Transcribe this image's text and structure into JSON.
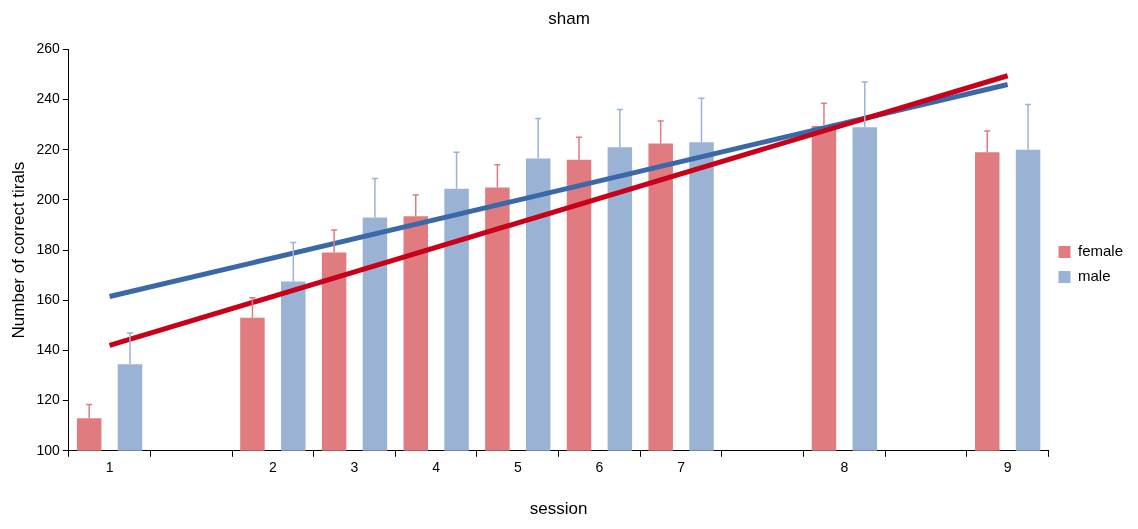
{
  "chart_data": {
    "type": "bar",
    "title": "sham",
    "xlabel": "session",
    "ylabel": "Number of correct tirals",
    "categories": [
      "1",
      null,
      "2",
      "3",
      "4",
      "5",
      "6",
      "7",
      null,
      "8",
      null,
      "9"
    ],
    "series": [
      {
        "name": "female",
        "color": "#e07b80",
        "values": [
          113,
          null,
          153,
          179,
          193.5,
          205,
          216,
          222.5,
          null,
          229.5,
          null,
          219
        ],
        "errors": [
          [
            113,
            118.5
          ],
          null,
          [
            153,
            161
          ],
          [
            179,
            188
          ],
          [
            193.5,
            202
          ],
          [
            205,
            214
          ],
          [
            216,
            225
          ],
          [
            222.5,
            231.5
          ],
          null,
          [
            229.5,
            238.5
          ],
          null,
          [
            219,
            227.5
          ]
        ]
      },
      {
        "name": "male",
        "color": "#9ab3d5",
        "values": [
          134.5,
          null,
          167.5,
          193,
          204.5,
          216.5,
          221,
          223,
          null,
          229,
          null,
          220
        ],
        "errors": [
          [
            134.5,
            147
          ],
          null,
          [
            167.5,
            183
          ],
          [
            193,
            208.5
          ],
          [
            204.5,
            219
          ],
          [
            216.5,
            232.5
          ],
          [
            221,
            236
          ],
          [
            223,
            240.5
          ],
          null,
          [
            229,
            247
          ],
          null,
          [
            220,
            238
          ]
        ]
      },
      {
        "type": "line",
        "color": "#c8001a",
        "x": [
          "1",
          "9"
        ],
        "values": [
          142,
          249.5
        ]
      },
      {
        "type": "line",
        "color": "#3a68a8",
        "x": [
          "1",
          "9"
        ],
        "values": [
          161.5,
          246
        ]
      }
    ],
    "ylim": [
      100,
      260
    ],
    "yticks": [
      100,
      120,
      140,
      160,
      180,
      200,
      220,
      240,
      260
    ],
    "grid": false,
    "legend": "right",
    "marker": "none",
    "line_style": "solid"
  }
}
